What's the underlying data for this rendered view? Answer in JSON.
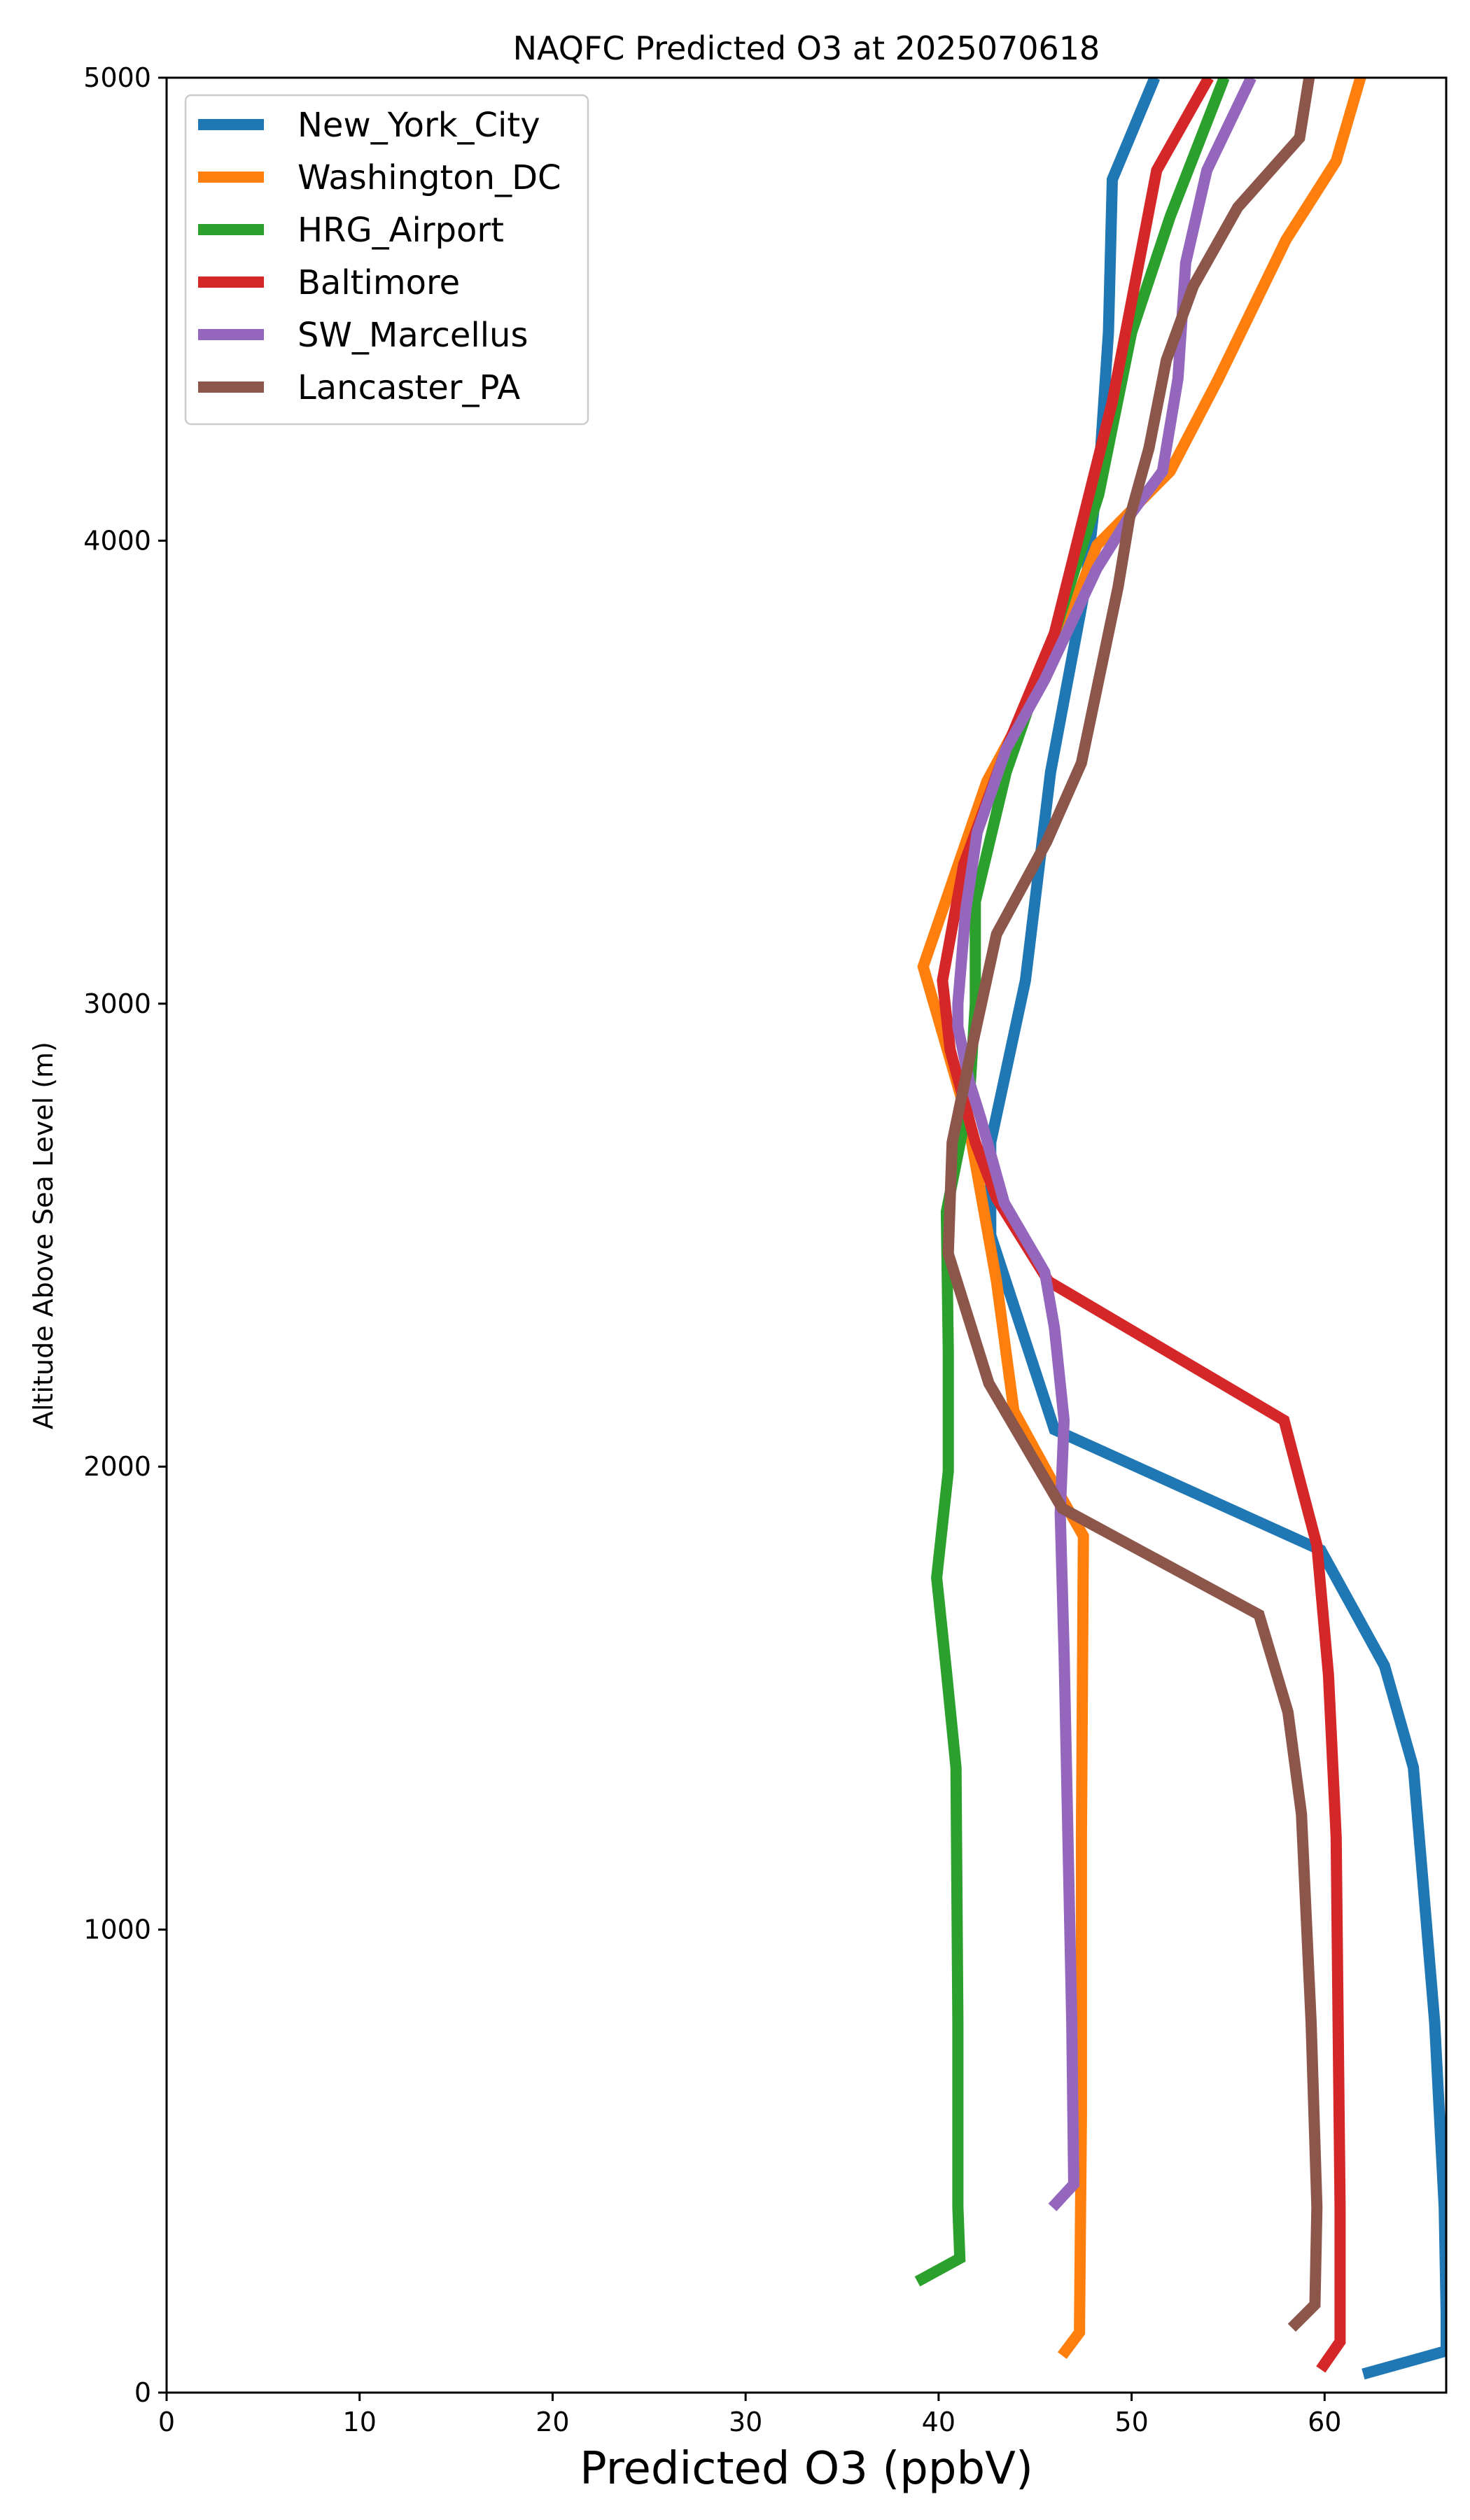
{
  "chart_data": {
    "type": "line",
    "title": "NAQFC Predicted O3 at 2025070618",
    "xlabel": "Predicted O3 (ppbV)",
    "ylabel": "Altitude Above Sea Level (m)",
    "xlim": [
      0,
      66.3
    ],
    "ylim": [
      0,
      5000
    ],
    "xticks": [
      0,
      10,
      20,
      30,
      40,
      50,
      60
    ],
    "yticks": [
      0,
      1000,
      2000,
      3000,
      4000,
      5000
    ],
    "grid": false,
    "legend_position": "top-left",
    "series": [
      {
        "name": "New_York_City",
        "color": "#1f77b4",
        "points": [
          [
            62.0,
            40
          ],
          [
            66.3,
            90
          ],
          [
            66.3,
            170
          ],
          [
            66.2,
            400
          ],
          [
            65.7,
            800
          ],
          [
            65.0,
            1150
          ],
          [
            64.6,
            1350
          ],
          [
            63.1,
            1570
          ],
          [
            59.8,
            1820
          ],
          [
            46.0,
            2080
          ],
          [
            42.7,
            2500
          ],
          [
            42.7,
            2700
          ],
          [
            44.5,
            3050
          ],
          [
            45.8,
            3500
          ],
          [
            47.6,
            3900
          ],
          [
            48.4,
            4200
          ],
          [
            48.8,
            4450
          ],
          [
            49.0,
            4780
          ],
          [
            51.2,
            5000
          ]
        ]
      },
      {
        "name": "Washington_DC",
        "color": "#ff7f0e",
        "points": [
          [
            46.4,
            80
          ],
          [
            47.3,
            130
          ],
          [
            47.4,
            600
          ],
          [
            47.4,
            1200
          ],
          [
            47.5,
            1850
          ],
          [
            46.0,
            1960
          ],
          [
            43.9,
            2120
          ],
          [
            43.0,
            2400
          ],
          [
            41.5,
            2750
          ],
          [
            39.2,
            3080
          ],
          [
            42.5,
            3480
          ],
          [
            46.0,
            3750
          ],
          [
            48.2,
            3990
          ],
          [
            52.0,
            4150
          ],
          [
            54.5,
            4350
          ],
          [
            58.0,
            4650
          ],
          [
            60.6,
            4820
          ],
          [
            62.0,
            5020
          ]
        ]
      },
      {
        "name": "HRG_Airport",
        "color": "#2ca02c",
        "points": [
          [
            38.9,
            240
          ],
          [
            41.1,
            290
          ],
          [
            41.0,
            400
          ],
          [
            41.0,
            800
          ],
          [
            40.9,
            1350
          ],
          [
            40.4,
            1560
          ],
          [
            39.9,
            1760
          ],
          [
            40.5,
            1990
          ],
          [
            40.5,
            2250
          ],
          [
            40.4,
            2550
          ],
          [
            41.6,
            2800
          ],
          [
            41.9,
            3000
          ],
          [
            41.9,
            3220
          ],
          [
            43.5,
            3500
          ],
          [
            46.0,
            3800
          ],
          [
            48.3,
            4100
          ],
          [
            50.0,
            4450
          ],
          [
            52.0,
            4700
          ],
          [
            54.8,
            5000
          ]
        ]
      },
      {
        "name": "Baltimore",
        "color": "#d62728",
        "points": [
          [
            59.8,
            50
          ],
          [
            60.8,
            110
          ],
          [
            60.8,
            400
          ],
          [
            60.7,
            800
          ],
          [
            60.6,
            1200
          ],
          [
            60.2,
            1550
          ],
          [
            59.6,
            1830
          ],
          [
            57.9,
            2100
          ],
          [
            45.7,
            2400
          ],
          [
            43.0,
            2580
          ],
          [
            41.9,
            2700
          ],
          [
            40.6,
            2900
          ],
          [
            40.2,
            3050
          ],
          [
            41.3,
            3300
          ],
          [
            43.5,
            3550
          ],
          [
            46.0,
            3800
          ],
          [
            49.0,
            4300
          ],
          [
            51.3,
            4800
          ],
          [
            54.0,
            5000
          ]
        ]
      },
      {
        "name": "SW_Marcellus",
        "color": "#9467bd",
        "points": [
          [
            45.9,
            400
          ],
          [
            47.0,
            450
          ],
          [
            46.9,
            800
          ],
          [
            46.7,
            1200
          ],
          [
            46.5,
            1600
          ],
          [
            46.3,
            1900
          ],
          [
            46.5,
            2100
          ],
          [
            46.0,
            2300
          ],
          [
            45.5,
            2420
          ],
          [
            43.4,
            2570
          ],
          [
            42.2,
            2750
          ],
          [
            41.6,
            2830
          ],
          [
            41.0,
            2950
          ],
          [
            41.0,
            3000
          ],
          [
            41.4,
            3200
          ],
          [
            42.0,
            3370
          ],
          [
            43.5,
            3550
          ],
          [
            45.5,
            3700
          ],
          [
            48.2,
            3940
          ],
          [
            50.0,
            4060
          ],
          [
            51.6,
            4150
          ],
          [
            52.4,
            4350
          ],
          [
            52.8,
            4600
          ],
          [
            53.9,
            4800
          ],
          [
            56.2,
            5000
          ]
        ]
      },
      {
        "name": "Lancaster_PA",
        "color": "#8c564b",
        "points": [
          [
            58.3,
            140
          ],
          [
            59.5,
            190
          ],
          [
            59.6,
            400
          ],
          [
            59.3,
            800
          ],
          [
            58.8,
            1250
          ],
          [
            58.1,
            1470
          ],
          [
            56.6,
            1680
          ],
          [
            46.4,
            1910
          ],
          [
            42.6,
            2180
          ],
          [
            40.5,
            2460
          ],
          [
            40.7,
            2700
          ],
          [
            41.7,
            2900
          ],
          [
            43.0,
            3150
          ],
          [
            45.6,
            3350
          ],
          [
            47.4,
            3520
          ],
          [
            49.3,
            3900
          ],
          [
            49.9,
            4050
          ],
          [
            50.9,
            4200
          ],
          [
            51.8,
            4390
          ],
          [
            53.2,
            4550
          ],
          [
            55.5,
            4720
          ],
          [
            58.7,
            4870
          ],
          [
            59.2,
            5000
          ]
        ]
      }
    ]
  }
}
